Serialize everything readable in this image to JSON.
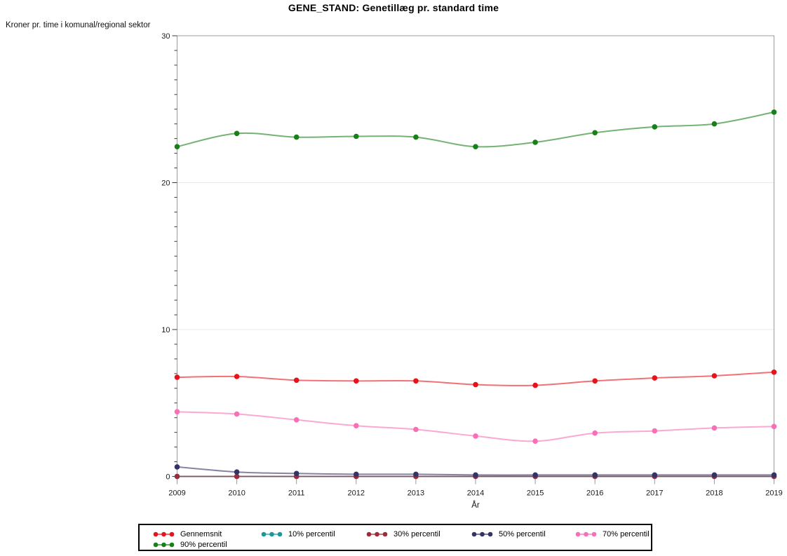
{
  "chart_data": {
    "type": "line",
    "title": "GENE_STAND: Genetillæg pr. standard time",
    "ylabel": "Kroner pr. time i komunal/regional sektor",
    "xlabel": "År",
    "x": [
      "2009",
      "2010",
      "2011",
      "2012",
      "2013",
      "2014",
      "2015",
      "2016",
      "2017",
      "2018",
      "2019"
    ],
    "ylim": [
      0,
      30
    ],
    "yticks": [
      0,
      10,
      20,
      30
    ],
    "minor_tick_step": 1,
    "grid": "horizontal gridlines at major y ticks",
    "legend_position": "bottom",
    "series": [
      {
        "name": "Gennemsnit",
        "color": "#e8131a",
        "values": [
          6.75,
          6.8,
          6.55,
          6.5,
          6.5,
          6.25,
          6.2,
          6.5,
          6.7,
          6.85,
          7.1
        ]
      },
      {
        "name": "10% percentil",
        "color": "#17999b",
        "values": [
          0,
          0,
          0,
          0,
          0,
          0,
          0,
          0,
          0,
          0,
          0
        ]
      },
      {
        "name": "30% percentil",
        "color": "#9e2b3a",
        "values": [
          0,
          0,
          0,
          0,
          0,
          0,
          0,
          0,
          0,
          0,
          0
        ]
      },
      {
        "name": "50% percentil",
        "color": "#333366",
        "values": [
          0.65,
          0.3,
          0.2,
          0.15,
          0.15,
          0.1,
          0.1,
          0.1,
          0.1,
          0.1,
          0.1
        ]
      },
      {
        "name": "70% percentil",
        "color": "#f96eb6",
        "values": [
          4.4,
          4.25,
          3.85,
          3.45,
          3.2,
          2.75,
          2.4,
          2.95,
          3.1,
          3.3,
          3.4
        ]
      },
      {
        "name": "90% percentil",
        "color": "#188018",
        "values": [
          22.45,
          23.35,
          23.1,
          23.15,
          23.1,
          22.45,
          22.75,
          23.4,
          23.8,
          24.0,
          24.8
        ]
      }
    ],
    "colors": {
      "frame": "#9b9b9b",
      "gridline": "#e9e9e9",
      "major_tick": "#3a3a3a",
      "minor_tick": "#3a3a3a",
      "x_tick": "#999999"
    }
  }
}
